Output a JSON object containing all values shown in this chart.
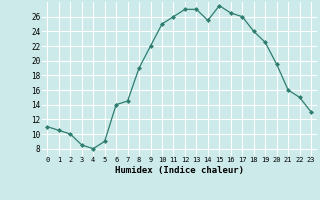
{
  "x": [
    0,
    1,
    2,
    3,
    4,
    5,
    6,
    7,
    8,
    9,
    10,
    11,
    12,
    13,
    14,
    15,
    16,
    17,
    18,
    19,
    20,
    21,
    22,
    23
  ],
  "y": [
    11,
    10.5,
    10,
    8.5,
    8,
    9,
    14,
    14.5,
    19,
    22,
    25,
    26,
    27,
    27,
    25.5,
    27.5,
    26.5,
    26,
    24,
    22.5,
    19.5,
    16,
    15,
    13
  ],
  "line_color": "#2e7d6e",
  "marker_color": "#2e7d6e",
  "bg_color": "#cceaea",
  "grid_color": "#ffffff",
  "xlabel": "Humidex (Indice chaleur)",
  "xlim": [
    -0.5,
    23.5
  ],
  "ylim": [
    7,
    28
  ],
  "yticks": [
    8,
    10,
    12,
    14,
    16,
    18,
    20,
    22,
    24,
    26
  ],
  "xticks": [
    0,
    1,
    2,
    3,
    4,
    5,
    6,
    7,
    8,
    9,
    10,
    11,
    12,
    13,
    14,
    15,
    16,
    17,
    18,
    19,
    20,
    21,
    22,
    23
  ]
}
